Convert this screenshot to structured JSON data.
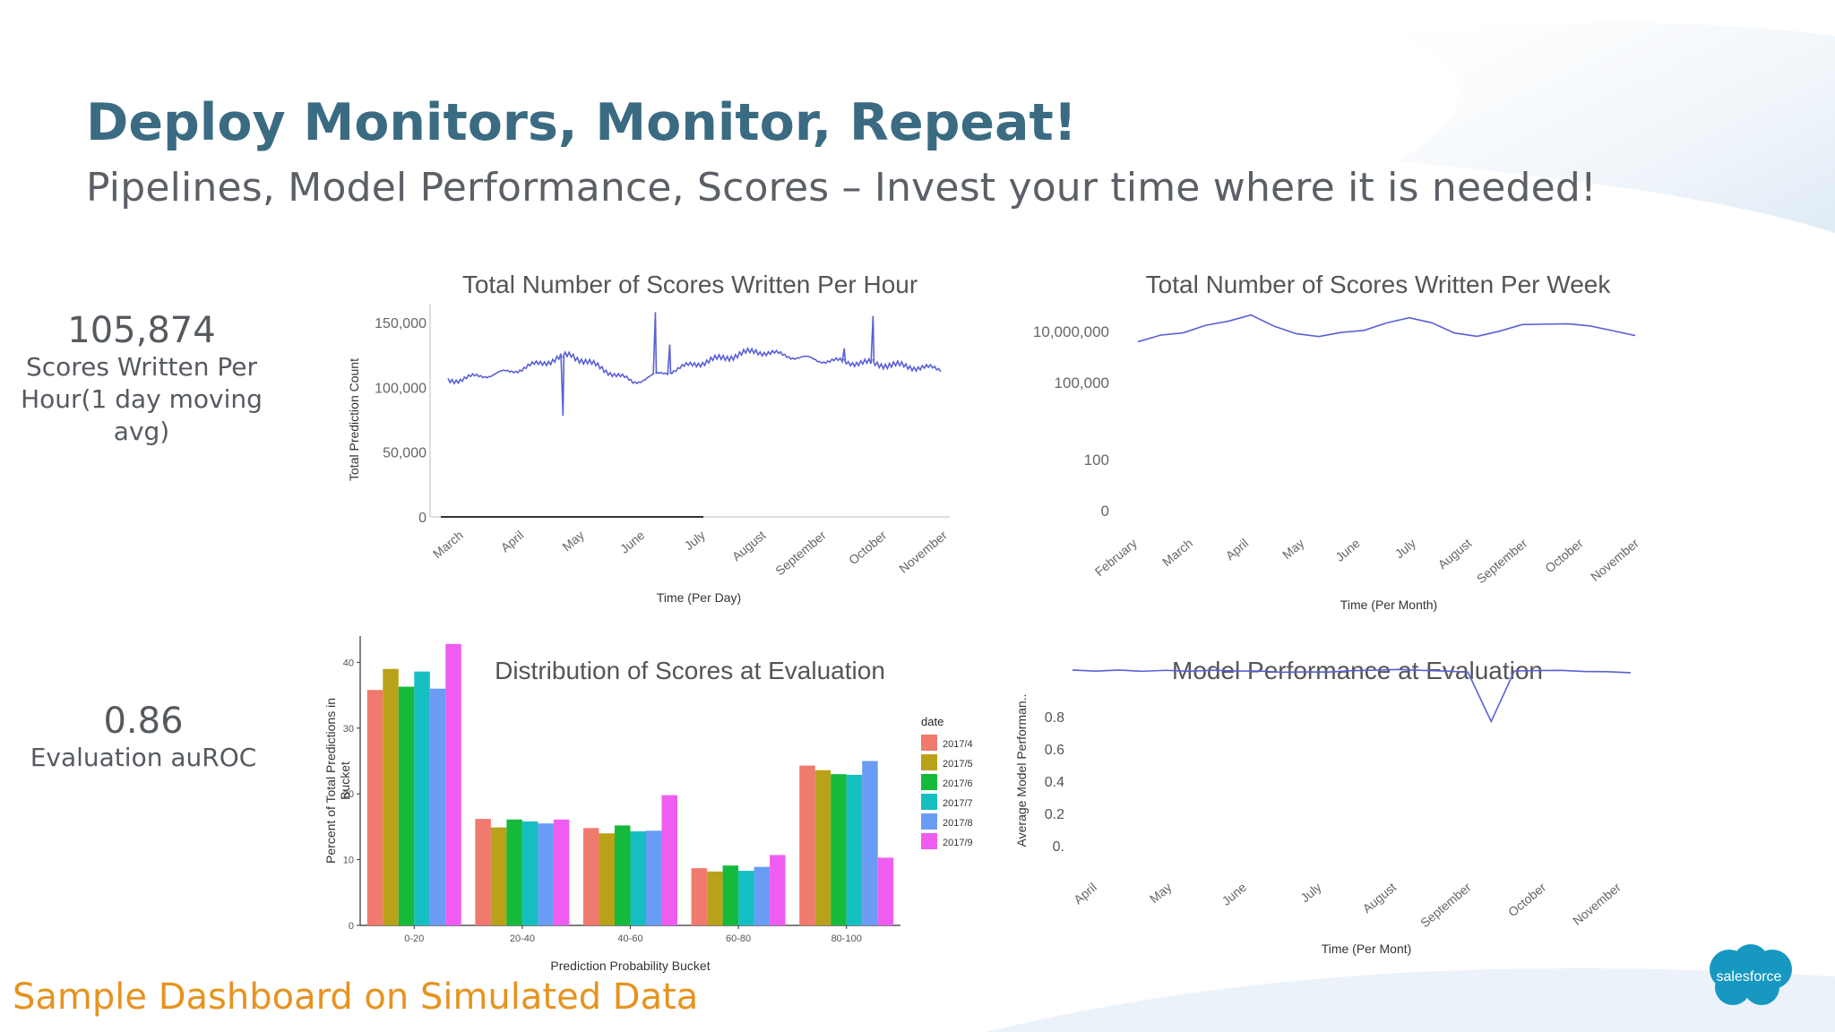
{
  "slide": {
    "title": "Deploy Monitors, Monitor, Repeat!",
    "subtitle": "Pipelines, Model Performance, Scores – Invest your time where it is needed!",
    "footer": "Sample Dashboard on Simulated Data",
    "logo_text": "salesforce"
  },
  "kpis": [
    {
      "value": "105,874",
      "label": "Scores Written Per Hour(1 day moving avg)"
    },
    {
      "value": "0.86",
      "label": "Evaluation auROC"
    }
  ],
  "colors": {
    "title": "#3b6b82",
    "line": "#5a5fd6",
    "footer": "#e6931f",
    "logo": "#1798c1"
  },
  "chart_data": [
    {
      "id": "hourly",
      "type": "line",
      "title": "Total Number of Scores Written Per Hour",
      "xlabel": "Time (Per Day)",
      "ylabel": "Total Prediction Count",
      "x_ticks": [
        "March",
        "April",
        "May",
        "June",
        "July",
        "August",
        "September",
        "October",
        "November"
      ],
      "y_ticks": [
        "0",
        "50,000",
        "100,000",
        "150,000"
      ],
      "ylim": [
        0,
        150000
      ],
      "x": [
        "March",
        "April",
        "May",
        "June",
        "July",
        "August",
        "September",
        "October",
        "November"
      ],
      "values": [
        105000,
        112000,
        125000,
        104000,
        118000,
        128000,
        121000,
        118000,
        114000
      ],
      "spikes": [
        {
          "x": "April-May",
          "value": 78000
        },
        {
          "x": "June",
          "value": 158000
        },
        {
          "x": "June-July",
          "value": 133000
        },
        {
          "x": "October",
          "value": 130000
        },
        {
          "x": "October-November",
          "value": 155000
        }
      ],
      "grid": false
    },
    {
      "id": "weekly",
      "type": "line",
      "title": "Total Number of Scores Written Per Week",
      "xlabel": "Time (Per Month)",
      "ylabel": "",
      "x_ticks": [
        "February",
        "March",
        "April",
        "May",
        "June",
        "July",
        "August",
        "September",
        "October",
        "November"
      ],
      "y_ticks": [
        "0",
        "100",
        "100,000",
        "10,000,000"
      ],
      "yscale": "log",
      "x": [
        "February",
        "March",
        "April",
        "May",
        "June",
        "July",
        "August",
        "September",
        "October",
        "November"
      ],
      "values": [
        5000000,
        12000000,
        40000000,
        5000000,
        10000000,
        45000000,
        6000000,
        20000000,
        18000000,
        6000000
      ],
      "grid": false
    },
    {
      "id": "distribution",
      "type": "bar",
      "title": "Distribution of Scores at Evaluation",
      "xlabel": "Prediction Probability Bucket",
      "ylabel": "Percent of Total Predictions in Bucket",
      "categories": [
        "0-20",
        "20-40",
        "40-60",
        "60-80",
        "80-100"
      ],
      "y_ticks": [
        "0",
        "10",
        "20",
        "30",
        "40"
      ],
      "ylim": [
        0,
        44
      ],
      "legend_title": "date",
      "legend_position": "right",
      "series": [
        {
          "name": "2017/4",
          "color": "#f07a6e",
          "values": [
            35.8,
            16.2,
            14.8,
            8.7,
            24.3
          ]
        },
        {
          "name": "2017/5",
          "color": "#b9a21a",
          "values": [
            39.0,
            14.9,
            14.0,
            8.2,
            23.6
          ]
        },
        {
          "name": "2017/6",
          "color": "#15ba3c",
          "values": [
            36.3,
            16.1,
            15.2,
            9.1,
            23.0
          ]
        },
        {
          "name": "2017/7",
          "color": "#15bec1",
          "values": [
            38.6,
            15.8,
            14.3,
            8.3,
            22.9
          ]
        },
        {
          "name": "2017/8",
          "color": "#6a9cf5",
          "values": [
            36.0,
            15.5,
            14.4,
            8.9,
            25.0
          ]
        },
        {
          "name": "2017/9",
          "color": "#ee5df0",
          "values": [
            42.8,
            16.1,
            19.8,
            10.7,
            10.3
          ]
        }
      ],
      "grid": false
    },
    {
      "id": "performance",
      "type": "line",
      "title": "Model Performance at Evaluation",
      "xlabel": "Time (Per Mont)",
      "ylabel": "Average Model Performan..",
      "x_ticks": [
        "April",
        "May",
        "June",
        "July",
        "August",
        "September",
        "October",
        "November"
      ],
      "y_ticks": [
        "0.",
        "0.2",
        "0.4",
        "0.6",
        "0.8"
      ],
      "ylim": [
        0,
        1
      ],
      "x": [
        "April",
        "May",
        "June",
        "July",
        "August",
        "September",
        "October",
        "November"
      ],
      "values": [
        0.98,
        0.98,
        0.99,
        0.98,
        0.99,
        0.97,
        0.99,
        0.98
      ],
      "dip": {
        "x": "September-October",
        "value": 0.67
      },
      "grid": false
    }
  ]
}
